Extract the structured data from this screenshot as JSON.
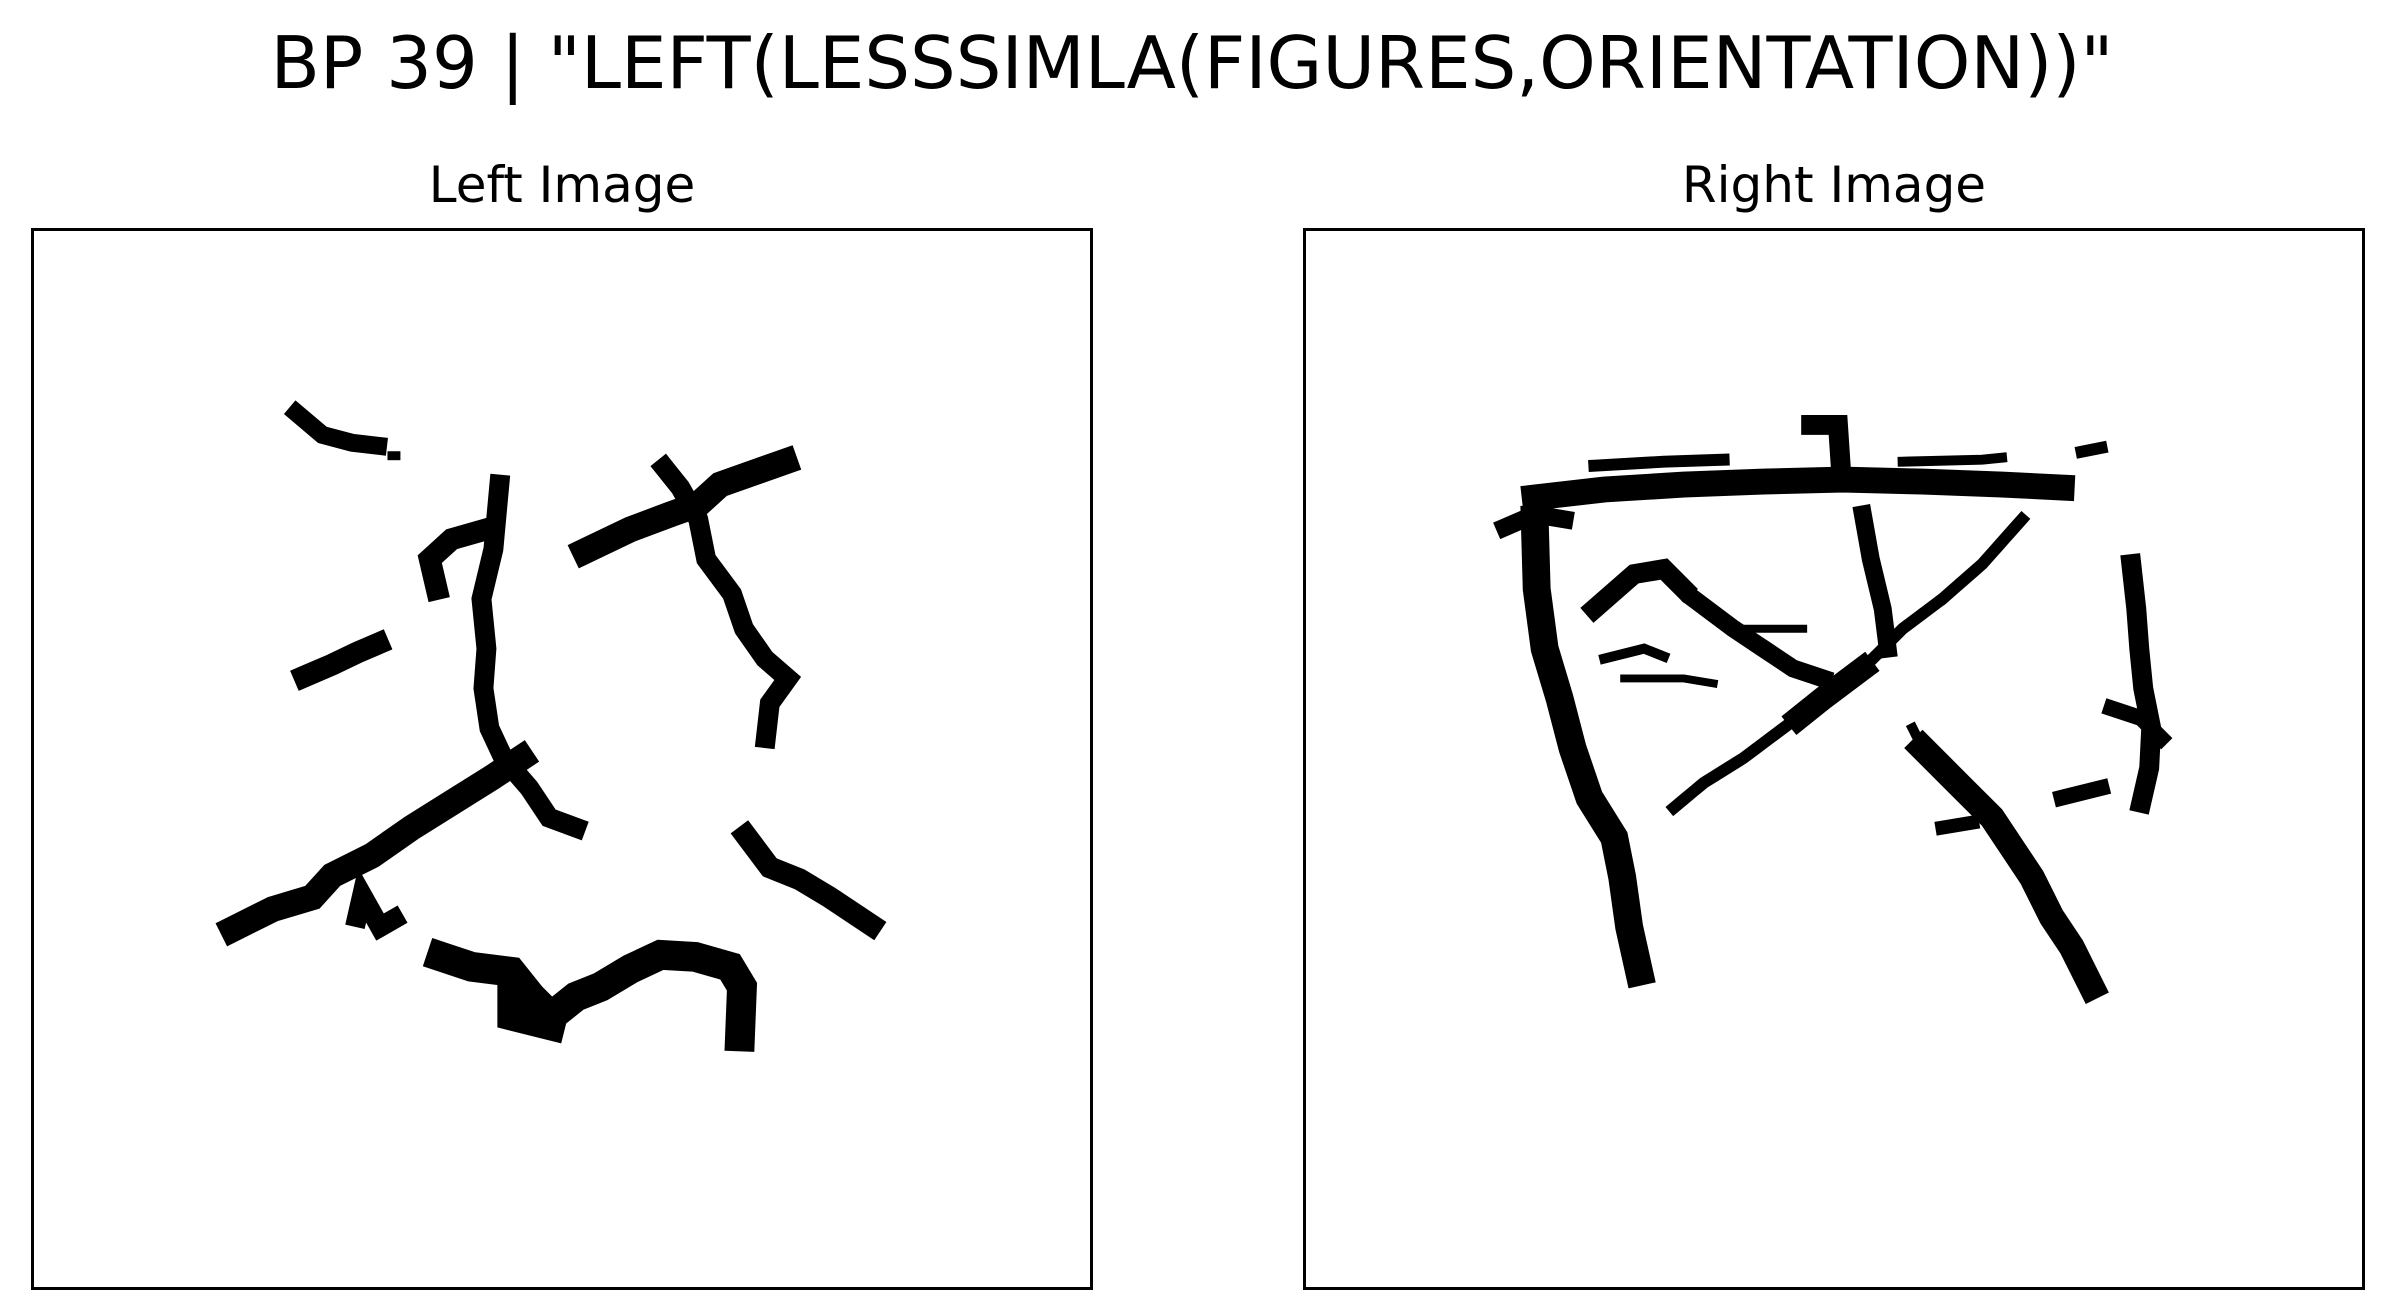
{
  "figure": {
    "title": "BP 39 | \"LEFT(LESSSIMLA(FIGURES,ORIENTATION))\""
  },
  "panels": [
    {
      "title": "Left Image"
    },
    {
      "title": "Right Image"
    }
  ],
  "colors": {
    "ink": "#000000",
    "background": "#ffffff"
  }
}
